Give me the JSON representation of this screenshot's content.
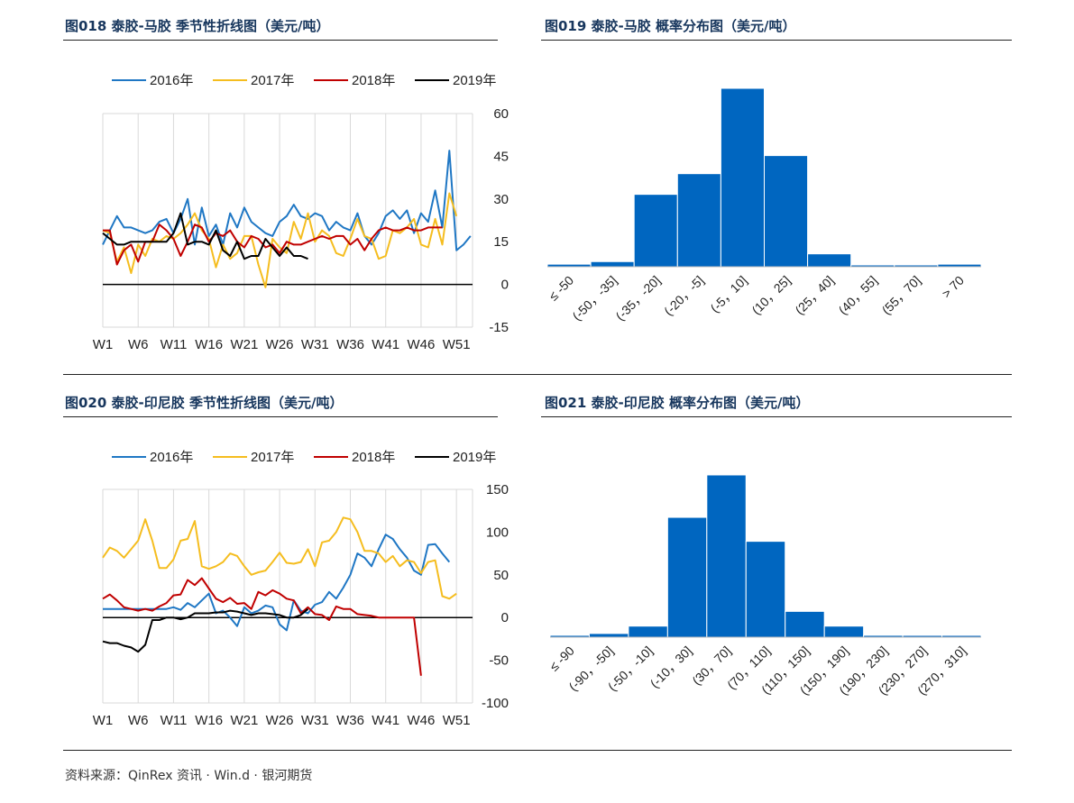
{
  "panels": [
    {
      "title": "图018  泰胶-马胶  季节性折线图（美元/吨）"
    },
    {
      "title": "图019  泰胶-马胶  概率分布图（美元/吨）"
    },
    {
      "title": "图020  泰胶-印尼胶  季节性折线图（美元/吨）"
    },
    {
      "title": "图021  泰胶-印尼胶  概率分布图（美元/吨）"
    }
  ],
  "source": "资料来源：QinRex 资讯 · Win.d · 银河期货",
  "colors": {
    "s2016": "#1f77c4",
    "s2017": "#f5bd1f",
    "s2018": "#c00000",
    "s2019": "#000000",
    "bar": "#0066c0",
    "title": "#17365d"
  },
  "chart_data": [
    {
      "type": "line",
      "x_ticks": [
        "W1",
        "W6",
        "W11",
        "W16",
        "W21",
        "W26",
        "W31",
        "W36",
        "W41",
        "W46",
        "W51"
      ],
      "ylim": [
        -15,
        60
      ],
      "yticks": [
        -15,
        0,
        15,
        30,
        45,
        60
      ],
      "grid": true,
      "legend": "top",
      "series": [
        {
          "name": "2016年",
          "color": "#1f77c4",
          "values": [
            14,
            19,
            24,
            20,
            20,
            19,
            18,
            19,
            22,
            23,
            18,
            23,
            30,
            14,
            27,
            17,
            21,
            14,
            25,
            20,
            27,
            22,
            20,
            18,
            17,
            22,
            24,
            28,
            24,
            23,
            25,
            24,
            19,
            22,
            20,
            19,
            25,
            17,
            14,
            18,
            24,
            26,
            23,
            26,
            18,
            25,
            22,
            33,
            20,
            47,
            12,
            14,
            17
          ]
        },
        {
          "name": "2017年",
          "color": "#f5bd1f",
          "values": [
            19,
            18,
            8,
            13,
            4,
            14,
            10,
            16,
            15,
            17,
            16,
            18,
            21,
            25,
            19,
            16,
            6,
            14,
            9,
            11,
            17,
            17,
            7,
            -1,
            16,
            13,
            11,
            22,
            16,
            25,
            15,
            19,
            17,
            11,
            10,
            16,
            23,
            17,
            16,
            9,
            10,
            19,
            18,
            20,
            23,
            14,
            13,
            23,
            14,
            32,
            24
          ]
        },
        {
          "name": "2018年",
          "color": "#c00000",
          "values": [
            19,
            19,
            7,
            12,
            14,
            8,
            15,
            15,
            21,
            19,
            16,
            10,
            15,
            21,
            20,
            15,
            18,
            17,
            19,
            15,
            13,
            17,
            16,
            13,
            14,
            11,
            15,
            14,
            14,
            15,
            16,
            17,
            16,
            17,
            17,
            14,
            16,
            12,
            16,
            19,
            20,
            19,
            19,
            20,
            19,
            19,
            20,
            20,
            20
          ]
        },
        {
          "name": "2019年",
          "color": "#000000",
          "values": [
            18,
            16,
            14,
            14,
            15,
            15,
            15,
            15,
            15,
            15,
            18,
            25,
            14,
            15,
            15,
            14,
            19,
            12,
            10,
            15,
            9,
            10,
            10,
            16,
            13,
            10,
            13,
            10,
            10,
            9
          ]
        }
      ]
    },
    {
      "type": "bar",
      "categories": [
        "≤ -50",
        "(-50，-35]",
        "(-35，-20]",
        "(-20，-5]",
        "(-5，10]",
        "(10，25]",
        "(25，40]",
        "(40，55]",
        "(55，70]",
        "> 70"
      ],
      "values": [
        0.01,
        0.02,
        0.28,
        0.36,
        0.69,
        0.43,
        0.05,
        0,
        0,
        0.01
      ]
    },
    {
      "type": "line",
      "x_ticks": [
        "W1",
        "W6",
        "W11",
        "W16",
        "W21",
        "W26",
        "W31",
        "W36",
        "W41",
        "W46",
        "W51"
      ],
      "ylim": [
        -100,
        150
      ],
      "yticks": [
        -100,
        -50,
        0,
        50,
        100,
        150
      ],
      "grid": true,
      "legend": "top",
      "series": [
        {
          "name": "2016年",
          "color": "#1f77c4",
          "values": [
            10,
            10,
            10,
            10,
            10,
            10,
            10,
            10,
            10,
            10,
            12,
            9,
            17,
            12,
            20,
            28,
            5,
            8,
            0,
            -10,
            12,
            5,
            8,
            14,
            12,
            -8,
            -15,
            20,
            8,
            5,
            15,
            18,
            30,
            22,
            35,
            50,
            75,
            70,
            60,
            80,
            97,
            92,
            80,
            70,
            55,
            50,
            85,
            86,
            75,
            65
          ]
        },
        {
          "name": "2017年",
          "color": "#f5bd1f",
          "values": [
            70,
            82,
            78,
            70,
            80,
            90,
            115,
            90,
            58,
            58,
            68,
            90,
            92,
            113,
            60,
            57,
            60,
            65,
            75,
            72,
            60,
            50,
            53,
            55,
            65,
            76,
            64,
            63,
            65,
            80,
            60,
            88,
            90,
            100,
            117,
            115,
            100,
            78,
            78,
            75,
            65,
            72,
            60,
            67,
            65,
            52,
            65,
            67,
            25,
            22,
            28
          ]
        },
        {
          "name": "2018年",
          "color": "#c00000",
          "values": [
            22,
            27,
            20,
            12,
            10,
            8,
            10,
            8,
            13,
            17,
            26,
            27,
            44,
            38,
            46,
            34,
            22,
            18,
            23,
            16,
            17,
            10,
            30,
            26,
            32,
            28,
            22,
            20,
            5,
            12,
            4,
            3,
            -3,
            13,
            10,
            10,
            4,
            3,
            2,
            0,
            0,
            0,
            0,
            0,
            0,
            -68
          ]
        },
        {
          "name": "2019年",
          "color": "#000000",
          "values": [
            -28,
            -30,
            -30,
            -33,
            -35,
            -40,
            -32,
            -3,
            -3,
            0,
            0,
            -2,
            0,
            5,
            5,
            5,
            6,
            6,
            8,
            7,
            5,
            3,
            5,
            5,
            4,
            3,
            0,
            0,
            3,
            10
          ]
        }
      ]
    },
    {
      "type": "bar",
      "categories": [
        "≤ -90",
        "(-90，-50]",
        "(-50，-10]",
        "(-10，30]",
        "(30，70]",
        "(70，110]",
        "(110，150]",
        "(150，190]",
        "(190，230]",
        "(230，270]",
        "(270，310]"
      ],
      "values": [
        0.01,
        0.02,
        0.06,
        0.65,
        0.88,
        0.52,
        0.14,
        0.06,
        0.01,
        0,
        0
      ]
    }
  ]
}
